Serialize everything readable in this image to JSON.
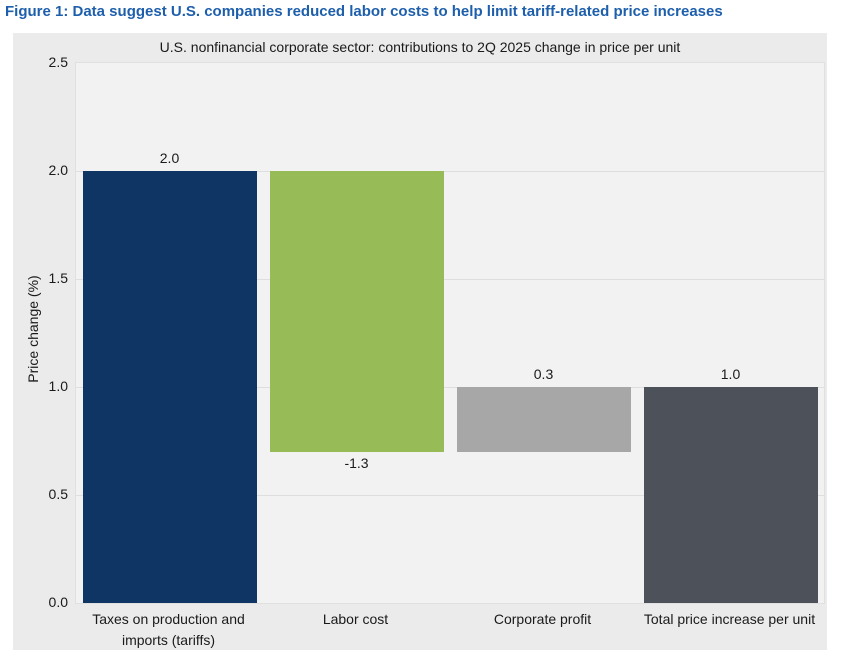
{
  "figure_title": "Figure 1: Data suggest U.S. companies reduced labor costs to help limit tariff-related price increases",
  "colors": {
    "figure_title_blue": "#1e5fac",
    "panel_bg": "#ebebeb",
    "plot_bg": "#f2f2f2",
    "gridline": "#dedede",
    "text": "#1a1a1a",
    "bar_navy": "#0e3563",
    "bar_green": "#97bc57",
    "bar_light_gray": "#a7a7a7",
    "bar_dark_gray": "#4d525a"
  },
  "chart_data": {
    "type": "bar",
    "subtype": "waterfall",
    "title": "U.S. nonfinancial corporate sector: contributions to 2Q 2025 change in price per unit",
    "xlabel": "",
    "ylabel": "Price change (%)",
    "ylim": [
      0,
      2.5
    ],
    "yticks": [
      "0.0",
      "0.5",
      "1.0",
      "1.5",
      "2.0",
      "2.5"
    ],
    "grid": "horizontal",
    "legend": "none",
    "categories": [
      "Taxes on production and imports (tariffs)",
      "Labor cost",
      "Corporate profit",
      "Total price increase per unit"
    ],
    "values": [
      2.0,
      -1.3,
      0.3,
      1.0
    ],
    "bars": [
      {
        "category": "Taxes on production and imports (tariffs)",
        "start": 0.0,
        "end": 2.0,
        "value": 2.0,
        "value_label": "2.0",
        "label_side": "above",
        "color": "#0e3563"
      },
      {
        "category": "Labor cost",
        "start": 2.0,
        "end": 0.7,
        "value": -1.3,
        "value_label": "-1.3",
        "label_side": "below",
        "color": "#97bc57"
      },
      {
        "category": "Corporate profit",
        "start": 0.7,
        "end": 1.0,
        "value": 0.3,
        "value_label": "0.3",
        "label_side": "above",
        "color": "#a7a7a7"
      },
      {
        "category": "Total price increase per unit",
        "start": 0.0,
        "end": 1.0,
        "value": 1.0,
        "value_label": "1.0",
        "label_side": "above",
        "color": "#4d525a"
      }
    ]
  }
}
